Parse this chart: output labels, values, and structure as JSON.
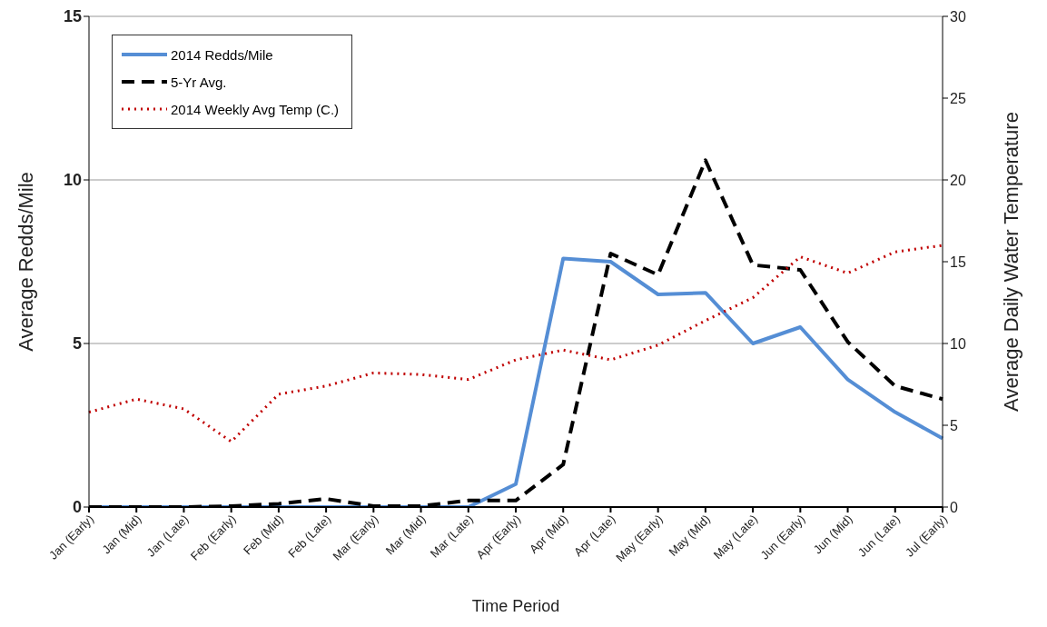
{
  "chart_data": {
    "type": "line",
    "xlabel": "Time Period",
    "ylabel": "Average Redds/Mile",
    "y2label": "Average Daily Water Temperature",
    "categories": [
      "Jan (Early)",
      "Jan (Mid)",
      "Jan (Late)",
      "Feb (Early)",
      "Feb (Mid)",
      "Feb (Late)",
      "Mar (Early)",
      "Mar (Mid)",
      "Mar (Late)",
      "Apr (Early)",
      "Apr (Mid)",
      "Apr (Late)",
      "May (Early)",
      "May (Mid)",
      "May (Late)",
      "Jun (Early)",
      "Jun (Mid)",
      "Jun (Late)",
      "Jul (Early)"
    ],
    "series": [
      {
        "name": "2014 Redds/Mile",
        "color": "#558ed5",
        "line_style": "solid",
        "values": [
          0,
          0,
          0,
          0,
          0,
          0,
          0,
          0,
          0,
          0.7,
          7.6,
          7.5,
          6.5,
          6.55,
          5.0,
          5.5,
          3.9,
          2.9,
          2.1
        ]
      },
      {
        "name": "5-Yr Avg.",
        "color": "#000000",
        "line_style": "dashed",
        "values": [
          0,
          0,
          0,
          0.03,
          0.1,
          0.25,
          0.03,
          0.03,
          0.2,
          0.2,
          1.3,
          7.75,
          7.1,
          10.6,
          7.4,
          7.25,
          5.05,
          3.7,
          3.3
        ]
      },
      {
        "name": "2014 Weekly Avg Temp (C.)",
        "color": "#c00000",
        "line_style": "dotted",
        "axis": "y2",
        "values": [
          5.8,
          6.6,
          6.0,
          4.0,
          6.9,
          7.4,
          8.2,
          8.1,
          7.8,
          9.0,
          9.6,
          9.0,
          9.9,
          11.4,
          12.8,
          15.3,
          14.3,
          15.6,
          16.0
        ]
      }
    ],
    "ylim": [
      0,
      15
    ],
    "yticks": [
      0,
      5,
      10,
      15
    ],
    "y2lim": [
      0,
      30
    ],
    "y2ticks": [
      0,
      5,
      10,
      15,
      20,
      25,
      30
    ],
    "grid": "y",
    "legend": "top left",
    "marker": "none"
  }
}
